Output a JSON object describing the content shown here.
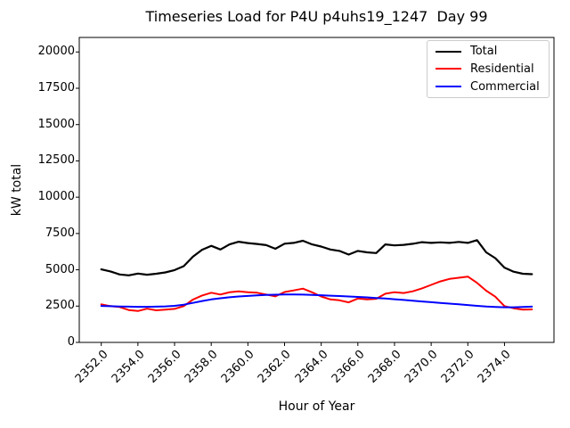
{
  "chart_data": {
    "type": "line",
    "title": "Timeseries Load for P4U p4uhs19_1247  Day 99",
    "xlabel": "Hour of Year",
    "ylabel": "kW total",
    "xlim": [
      2350.8,
      2376.7
    ],
    "ylim": [
      0,
      21000
    ],
    "grid": false,
    "legend_position": "upper right",
    "x_ticks": [
      2352,
      2354,
      2356,
      2358,
      2360,
      2362,
      2364,
      2366,
      2368,
      2370,
      2372,
      2374
    ],
    "x_tick_labels": [
      "2352.0",
      "2354.0",
      "2356.0",
      "2358.0",
      "2360.0",
      "2362.0",
      "2364.0",
      "2366.0",
      "2368.0",
      "2370.0",
      "2372.0",
      "2374.0"
    ],
    "y_ticks": [
      0,
      2500,
      5000,
      7500,
      10000,
      12500,
      15000,
      17500,
      20000
    ],
    "y_tick_labels": [
      "0",
      "2500",
      "5000",
      "7500",
      "10000",
      "12500",
      "15000",
      "17500",
      "20000"
    ],
    "x": [
      2352.0,
      2352.5,
      2353.0,
      2353.5,
      2354.0,
      2354.5,
      2355.0,
      2355.5,
      2356.0,
      2356.5,
      2357.0,
      2357.5,
      2358.0,
      2358.5,
      2359.0,
      2359.5,
      2360.0,
      2360.5,
      2361.0,
      2361.5,
      2362.0,
      2362.5,
      2363.0,
      2363.5,
      2364.0,
      2364.5,
      2365.0,
      2365.5,
      2366.0,
      2366.5,
      2367.0,
      2367.5,
      2368.0,
      2368.5,
      2369.0,
      2369.5,
      2370.0,
      2370.5,
      2371.0,
      2371.5,
      2372.0,
      2372.5,
      2373.0,
      2373.5,
      2374.0,
      2374.5,
      2375.0,
      2375.5
    ],
    "series": [
      {
        "name": "Total",
        "color": "#000000",
        "linewidth": 2.2,
        "values": [
          5030,
          4890,
          4680,
          4620,
          4740,
          4660,
          4730,
          4820,
          4980,
          5250,
          5900,
          6380,
          6650,
          6400,
          6750,
          6930,
          6840,
          6780,
          6700,
          6450,
          6800,
          6850,
          7000,
          6750,
          6600,
          6400,
          6300,
          6050,
          6300,
          6200,
          6150,
          6750,
          6680,
          6720,
          6790,
          6900,
          6850,
          6890,
          6850,
          6920,
          6850,
          7040,
          6200,
          5800,
          5150,
          4870,
          4730,
          4700
        ]
      },
      {
        "name": "Residential",
        "color": "#ff0000",
        "linewidth": 2,
        "values": [
          2620,
          2500,
          2440,
          2230,
          2160,
          2320,
          2210,
          2260,
          2310,
          2500,
          2950,
          3230,
          3420,
          3300,
          3450,
          3520,
          3460,
          3420,
          3300,
          3170,
          3470,
          3580,
          3700,
          3450,
          3160,
          2960,
          2900,
          2760,
          3020,
          2960,
          3000,
          3350,
          3460,
          3400,
          3520,
          3720,
          3960,
          4200,
          4370,
          4450,
          4530,
          4100,
          3560,
          3150,
          2500,
          2350,
          2260,
          2270
        ]
      },
      {
        "name": "Commercial",
        "color": "#0000ff",
        "linewidth": 2,
        "values": [
          2510,
          2490,
          2475,
          2460,
          2450,
          2450,
          2460,
          2480,
          2520,
          2600,
          2720,
          2850,
          2960,
          3040,
          3110,
          3160,
          3200,
          3240,
          3265,
          3285,
          3295,
          3300,
          3290,
          3270,
          3250,
          3220,
          3190,
          3160,
          3130,
          3100,
          3060,
          3020,
          2970,
          2920,
          2870,
          2820,
          2770,
          2720,
          2670,
          2620,
          2570,
          2520,
          2470,
          2440,
          2420,
          2420,
          2440,
          2460
        ]
      }
    ]
  }
}
